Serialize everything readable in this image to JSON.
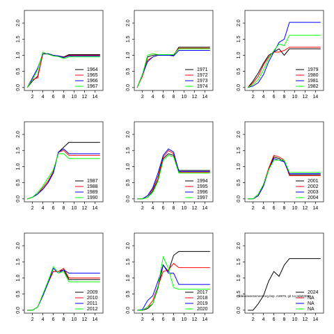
{
  "chart_data": [
    {
      "type": "line",
      "x": [
        1,
        2,
        3,
        4,
        5,
        6,
        7,
        8,
        9,
        10,
        11,
        12,
        13,
        14,
        15
      ],
      "xlim": [
        0.44,
        15.56
      ],
      "xticks": [
        2,
        4,
        6,
        8,
        10,
        12,
        14
      ],
      "ylim": [
        -0.09,
        2.39
      ],
      "yticks": [
        {
          "value": 0,
          "label": "0.0"
        },
        0.5,
        {
          "value": 1,
          "label": "1.0"
        },
        1.5,
        {
          "value": 2,
          "label": "2.0"
        }
      ],
      "series": [
        {
          "name": "1964",
          "color": "#000000",
          "values": [
            0,
            0.2,
            0.35,
            1.05,
            1.05,
            1.0,
            0.98,
            0.95,
            1.02,
            1.02,
            1.02,
            1.02,
            1.02,
            1.02,
            1.02
          ]
        },
        {
          "name": "1965",
          "color": "#ff0000",
          "values": [
            0,
            0.25,
            0.3,
            1.05,
            1.03,
            1.0,
            0.97,
            0.94,
            1.0,
            1.0,
            1.0,
            1.0,
            1.0,
            1.0,
            1.0
          ]
        },
        {
          "name": "1966",
          "color": "#0000ff",
          "values": [
            0,
            0.3,
            0.6,
            1.05,
            1.05,
            1.0,
            0.98,
            0.93,
            0.98,
            0.98,
            0.98,
            0.98,
            0.98,
            0.98,
            0.98
          ]
        },
        {
          "name": "1967",
          "color": "#00ff00",
          "values": [
            0,
            0.25,
            0.55,
            1.1,
            1.03,
            0.98,
            0.96,
            0.9,
            0.95,
            0.95,
            0.95,
            0.95,
            0.95,
            0.95,
            0.95
          ]
        }
      ]
    },
    {
      "type": "line",
      "x": [
        1,
        2,
        3,
        4,
        5,
        6,
        7,
        8,
        9,
        10,
        11,
        12,
        13,
        14,
        15
      ],
      "xlim": [
        0.44,
        15.56
      ],
      "xticks": [
        2,
        4,
        6,
        8,
        10,
        12,
        14
      ],
      "ylim": [
        -0.09,
        2.39
      ],
      "yticks": [
        {
          "value": 0,
          "label": "0.0"
        },
        0.5,
        {
          "value": 1,
          "label": "1.0"
        },
        1.5,
        {
          "value": 2,
          "label": "2.0"
        }
      ],
      "series": [
        {
          "name": "1971",
          "color": "#000000",
          "values": [
            0,
            0.4,
            0.95,
            1.0,
            1.02,
            1.02,
            1.02,
            1.0,
            1.25,
            1.25,
            1.25,
            1.25,
            1.25,
            1.25,
            1.25
          ]
        },
        {
          "name": "1972",
          "color": "#ff0000",
          "values": [
            0,
            0.35,
            0.85,
            0.95,
            1.0,
            1.02,
            1.02,
            1.02,
            1.22,
            1.22,
            1.22,
            1.22,
            1.22,
            1.22,
            1.22
          ]
        },
        {
          "name": "1973",
          "color": "#0000ff",
          "values": [
            0,
            0.4,
            0.8,
            0.95,
            1.0,
            1.0,
            1.0,
            0.98,
            1.15,
            1.15,
            1.15,
            1.15,
            1.15,
            1.15,
            1.15
          ]
        },
        {
          "name": "1974",
          "color": "#00ff00",
          "values": [
            0,
            0.4,
            1.0,
            1.05,
            1.02,
            1.02,
            1.02,
            1.02,
            1.2,
            1.2,
            1.2,
            1.2,
            1.2,
            1.2,
            1.2
          ]
        }
      ]
    },
    {
      "type": "line",
      "x": [
        1,
        2,
        3,
        4,
        5,
        6,
        7,
        8,
        9,
        10,
        11,
        12,
        13,
        14,
        15
      ],
      "xlim": [
        0.44,
        15.56
      ],
      "xticks": [
        2,
        4,
        6,
        8,
        10,
        12,
        14
      ],
      "ylim": [
        -0.09,
        2.39
      ],
      "yticks": [
        {
          "value": 0,
          "label": "0.0"
        },
        0.5,
        {
          "value": 1,
          "label": "1.0"
        },
        1.5,
        {
          "value": 2,
          "label": "2.0"
        }
      ],
      "series": [
        {
          "name": "1979",
          "color": "#000000",
          "values": [
            0,
            0.2,
            0.45,
            0.75,
            1.0,
            1.1,
            1.2,
            1.0,
            1.2,
            1.2,
            1.2,
            1.2,
            1.2,
            1.2,
            1.2
          ]
        },
        {
          "name": "1980",
          "color": "#ff0000",
          "values": [
            0,
            0.15,
            0.35,
            0.7,
            0.95,
            1.1,
            1.1,
            1.15,
            1.25,
            1.25,
            1.25,
            1.25,
            1.25,
            1.25,
            1.25
          ]
        },
        {
          "name": "1981",
          "color": "#0000ff",
          "values": [
            0,
            0.05,
            0.15,
            0.4,
            0.8,
            1.1,
            1.4,
            1.5,
            2.02,
            2.02,
            2.02,
            2.02,
            2.02,
            2.02,
            2.02
          ]
        },
        {
          "name": "1982",
          "color": "#00ff00",
          "values": [
            0,
            0.1,
            0.25,
            0.55,
            0.9,
            1.15,
            1.35,
            1.3,
            1.62,
            1.62,
            1.62,
            1.62,
            1.62,
            1.62,
            1.62
          ]
        }
      ]
    },
    {
      "type": "line",
      "x": [
        1,
        2,
        3,
        4,
        5,
        6,
        7,
        8,
        9,
        10,
        11,
        12,
        13,
        14,
        15
      ],
      "xlim": [
        0.44,
        15.56
      ],
      "xticks": [
        2,
        4,
        6,
        8,
        10,
        12,
        14
      ],
      "ylim": [
        -0.09,
        2.39
      ],
      "yticks": [
        {
          "value": 0,
          "label": "0.0"
        },
        0.5,
        {
          "value": 1,
          "label": "1.0"
        },
        1.5,
        {
          "value": 2,
          "label": "2.0"
        }
      ],
      "series": [
        {
          "name": "1987",
          "color": "#000000",
          "values": [
            0,
            0.05,
            0.15,
            0.3,
            0.5,
            0.8,
            1.45,
            1.6,
            1.75,
            1.75,
            1.75,
            1.75,
            1.75,
            1.75,
            1.75
          ]
        },
        {
          "name": "1988",
          "color": "#ff0000",
          "values": [
            0,
            0.05,
            0.15,
            0.35,
            0.55,
            0.85,
            1.45,
            1.5,
            1.35,
            1.35,
            1.35,
            1.35,
            1.35,
            1.35,
            1.35
          ]
        },
        {
          "name": "1989",
          "color": "#0000ff",
          "values": [
            0,
            0.05,
            0.15,
            0.3,
            0.5,
            0.8,
            1.45,
            1.55,
            1.4,
            1.4,
            1.4,
            1.4,
            1.4,
            1.4,
            1.4
          ]
        },
        {
          "name": "1990",
          "color": "#00ff00",
          "values": [
            0,
            0.05,
            0.2,
            0.4,
            0.65,
            0.9,
            1.4,
            1.4,
            1.25,
            1.25,
            1.25,
            1.25,
            1.25,
            1.25,
            1.25
          ]
        }
      ]
    },
    {
      "type": "line",
      "x": [
        1,
        2,
        3,
        4,
        5,
        6,
        7,
        8,
        9,
        10,
        11,
        12,
        13,
        14,
        15
      ],
      "xlim": [
        0.44,
        15.56
      ],
      "xticks": [
        2,
        4,
        6,
        8,
        10,
        12,
        14
      ],
      "ylim": [
        -0.09,
        2.39
      ],
      "yticks": [
        {
          "value": 0,
          "label": "0.0"
        },
        0.5,
        {
          "value": 1,
          "label": "1.0"
        },
        1.5,
        {
          "value": 2,
          "label": "2.0"
        }
      ],
      "series": [
        {
          "name": "1994",
          "color": "#000000",
          "values": [
            0,
            0,
            0.05,
            0.25,
            0.6,
            1.25,
            1.4,
            1.35,
            0.88,
            0.88,
            0.88,
            0.88,
            0.88,
            0.88,
            0.88
          ]
        },
        {
          "name": "1995",
          "color": "#ff0000",
          "values": [
            0,
            0,
            0.1,
            0.3,
            0.7,
            1.3,
            1.5,
            1.4,
            0.82,
            0.82,
            0.82,
            0.82,
            0.82,
            0.82,
            0.82
          ]
        },
        {
          "name": "1996",
          "color": "#0000ff",
          "values": [
            0,
            0,
            0.1,
            0.35,
            0.8,
            1.35,
            1.55,
            1.45,
            0.85,
            0.85,
            0.85,
            0.85,
            0.85,
            0.85,
            0.85
          ]
        },
        {
          "name": "1997",
          "color": "#00ff00",
          "values": [
            0,
            0,
            0.05,
            0.2,
            0.55,
            1.2,
            1.35,
            1.3,
            0.8,
            0.8,
            0.8,
            0.8,
            0.8,
            0.8,
            0.8
          ]
        }
      ]
    },
    {
      "type": "line",
      "x": [
        1,
        2,
        3,
        4,
        5,
        6,
        7,
        8,
        9,
        10,
        11,
        12,
        13,
        14,
        15
      ],
      "xlim": [
        0.44,
        15.56
      ],
      "xticks": [
        2,
        4,
        6,
        8,
        10,
        12,
        14
      ],
      "ylim": [
        -0.09,
        2.39
      ],
      "yticks": [
        {
          "value": 0,
          "label": "0.0"
        },
        0.5,
        {
          "value": 1,
          "label": "1.0"
        },
        1.5,
        {
          "value": 2,
          "label": "2.0"
        }
      ],
      "series": [
        {
          "name": "2001",
          "color": "#000000",
          "values": [
            0,
            0,
            0.1,
            0.4,
            0.9,
            1.3,
            1.25,
            1.15,
            0.75,
            0.75,
            0.75,
            0.75,
            0.75,
            0.75,
            0.75
          ]
        },
        {
          "name": "2002",
          "color": "#ff0000",
          "values": [
            0,
            0,
            0.1,
            0.45,
            0.95,
            1.35,
            1.3,
            1.2,
            0.72,
            0.72,
            0.72,
            0.72,
            0.72,
            0.72,
            0.72
          ]
        },
        {
          "name": "2003",
          "color": "#0000ff",
          "values": [
            0,
            0,
            0.1,
            0.4,
            0.9,
            1.25,
            1.2,
            1.15,
            0.78,
            0.78,
            0.78,
            0.78,
            0.78,
            0.78,
            0.78
          ]
        },
        {
          "name": "2004",
          "color": "#00ff00",
          "values": [
            0,
            0,
            0.15,
            0.45,
            0.9,
            1.2,
            1.2,
            1.2,
            0.82,
            0.82,
            0.82,
            0.82,
            0.82,
            0.82,
            0.82
          ]
        }
      ]
    },
    {
      "type": "line",
      "x": [
        1,
        2,
        3,
        4,
        5,
        6,
        7,
        8,
        9,
        10,
        11,
        12,
        13,
        14,
        15
      ],
      "xlim": [
        0.44,
        15.56
      ],
      "xticks": [
        2,
        4,
        6,
        8,
        10,
        12,
        14
      ],
      "ylim": [
        -0.09,
        2.39
      ],
      "yticks": [
        {
          "value": 0,
          "label": "0.0"
        },
        0.5,
        {
          "value": 1,
          "label": "1.0"
        },
        1.5,
        {
          "value": 2,
          "label": "2.0"
        }
      ],
      "series": [
        {
          "name": "2009",
          "color": "#000000",
          "values": [
            0,
            0,
            0.1,
            0.45,
            0.85,
            1.2,
            1.2,
            1.25,
            0.95,
            0.95,
            0.95,
            0.95,
            0.95,
            0.95,
            0.95
          ]
        },
        {
          "name": "2010",
          "color": "#ff0000",
          "values": [
            0,
            0,
            0.1,
            0.45,
            0.85,
            1.2,
            1.2,
            1.3,
            1.0,
            1.0,
            1.0,
            1.0,
            1.0,
            1.0,
            1.0
          ]
        },
        {
          "name": "2011",
          "color": "#0000ff",
          "values": [
            0,
            0,
            0.1,
            0.45,
            0.85,
            1.3,
            1.15,
            1.25,
            1.15,
            1.15,
            1.15,
            1.15,
            1.15,
            1.15,
            1.15
          ]
        },
        {
          "name": "2012",
          "color": "#00ff00",
          "values": [
            0,
            0,
            0.1,
            0.5,
            0.9,
            1.35,
            1.15,
            1.2,
            0.88,
            0.88,
            0.88,
            0.88,
            0.88,
            0.88,
            0.88
          ]
        }
      ]
    },
    {
      "type": "line",
      "x": [
        1,
        2,
        3,
        4,
        5,
        6,
        7,
        8,
        9,
        10,
        11,
        12,
        13,
        14,
        15
      ],
      "xlim": [
        0.44,
        15.56
      ],
      "xticks": [
        2,
        4,
        6,
        8,
        10,
        12,
        14
      ],
      "ylim": [
        -0.09,
        2.39
      ],
      "yticks": [
        {
          "value": 0,
          "label": "0.0"
        },
        0.5,
        {
          "value": 1,
          "label": "1.0"
        },
        1.5,
        {
          "value": 2,
          "label": "2.0"
        }
      ],
      "series": [
        {
          "name": "2017",
          "color": "#000000",
          "values": [
            0,
            0,
            0.05,
            0.2,
            0.7,
            1.4,
            1.2,
            1.7,
            1.82,
            1.82,
            1.82,
            1.82,
            1.82,
            1.82,
            1.82
          ]
        },
        {
          "name": "2018",
          "color": "#ff0000",
          "values": [
            0,
            0,
            0.1,
            0.3,
            0.75,
            1.2,
            1.25,
            1.45,
            1.32,
            1.32,
            1.32,
            1.32,
            1.32,
            1.32,
            1.32
          ]
        },
        {
          "name": "2019",
          "color": "#0000ff",
          "values": [
            0,
            0.02,
            0.3,
            0.45,
            0.9,
            1.4,
            1.15,
            1.15,
            0.8,
            0.8,
            0.8,
            0.8,
            0.8,
            0.8,
            0.8
          ]
        },
        {
          "name": "2020",
          "color": "#00ff00",
          "values": [
            0,
            0,
            0.1,
            0.2,
            0.75,
            1.65,
            1.3,
            0.7,
            0.65,
            0.65,
            0.65,
            0.65,
            0.65,
            0.65,
            0.65
          ]
        }
      ]
    },
    {
      "type": "line",
      "x": [
        1,
        2,
        3,
        4,
        5,
        6,
        7,
        8,
        9,
        10,
        11,
        12,
        13,
        14,
        15
      ],
      "xlim": [
        0.44,
        15.56
      ],
      "xticks": [
        2,
        4,
        6,
        8,
        10,
        12,
        14
      ],
      "ylim": [
        -0.09,
        2.39
      ],
      "yticks": [
        {
          "value": 0,
          "label": "0.0"
        },
        0.5,
        {
          "value": 1,
          "label": "1.0"
        },
        1.5,
        {
          "value": 2,
          "label": "2.0"
        }
      ],
      "annotation": "/data/assessment/org.bsp, r18976, git 1cc4da03089",
      "series": [
        {
          "name": "2024",
          "color": "#000000",
          "values": [
            0,
            0,
            0.2,
            0.45,
            0.9,
            1.2,
            1.05,
            1.4,
            1.6,
            1.6,
            1.6,
            1.6,
            1.6,
            1.6,
            1.6
          ]
        },
        {
          "name": "NA",
          "color": "#ff0000",
          "values": [
            null,
            null,
            null,
            null,
            null,
            null,
            null,
            null,
            null,
            null,
            null,
            null,
            null,
            null,
            null
          ]
        },
        {
          "name": "NA",
          "color": "#0000ff",
          "values": [
            null,
            null,
            null,
            null,
            null,
            null,
            null,
            null,
            null,
            null,
            null,
            null,
            null,
            null,
            null
          ]
        },
        {
          "name": "NA",
          "color": "#00ff00",
          "values": [
            null,
            null,
            null,
            null,
            null,
            null,
            null,
            null,
            null,
            null,
            null,
            null,
            null,
            null,
            null
          ]
        }
      ]
    }
  ]
}
